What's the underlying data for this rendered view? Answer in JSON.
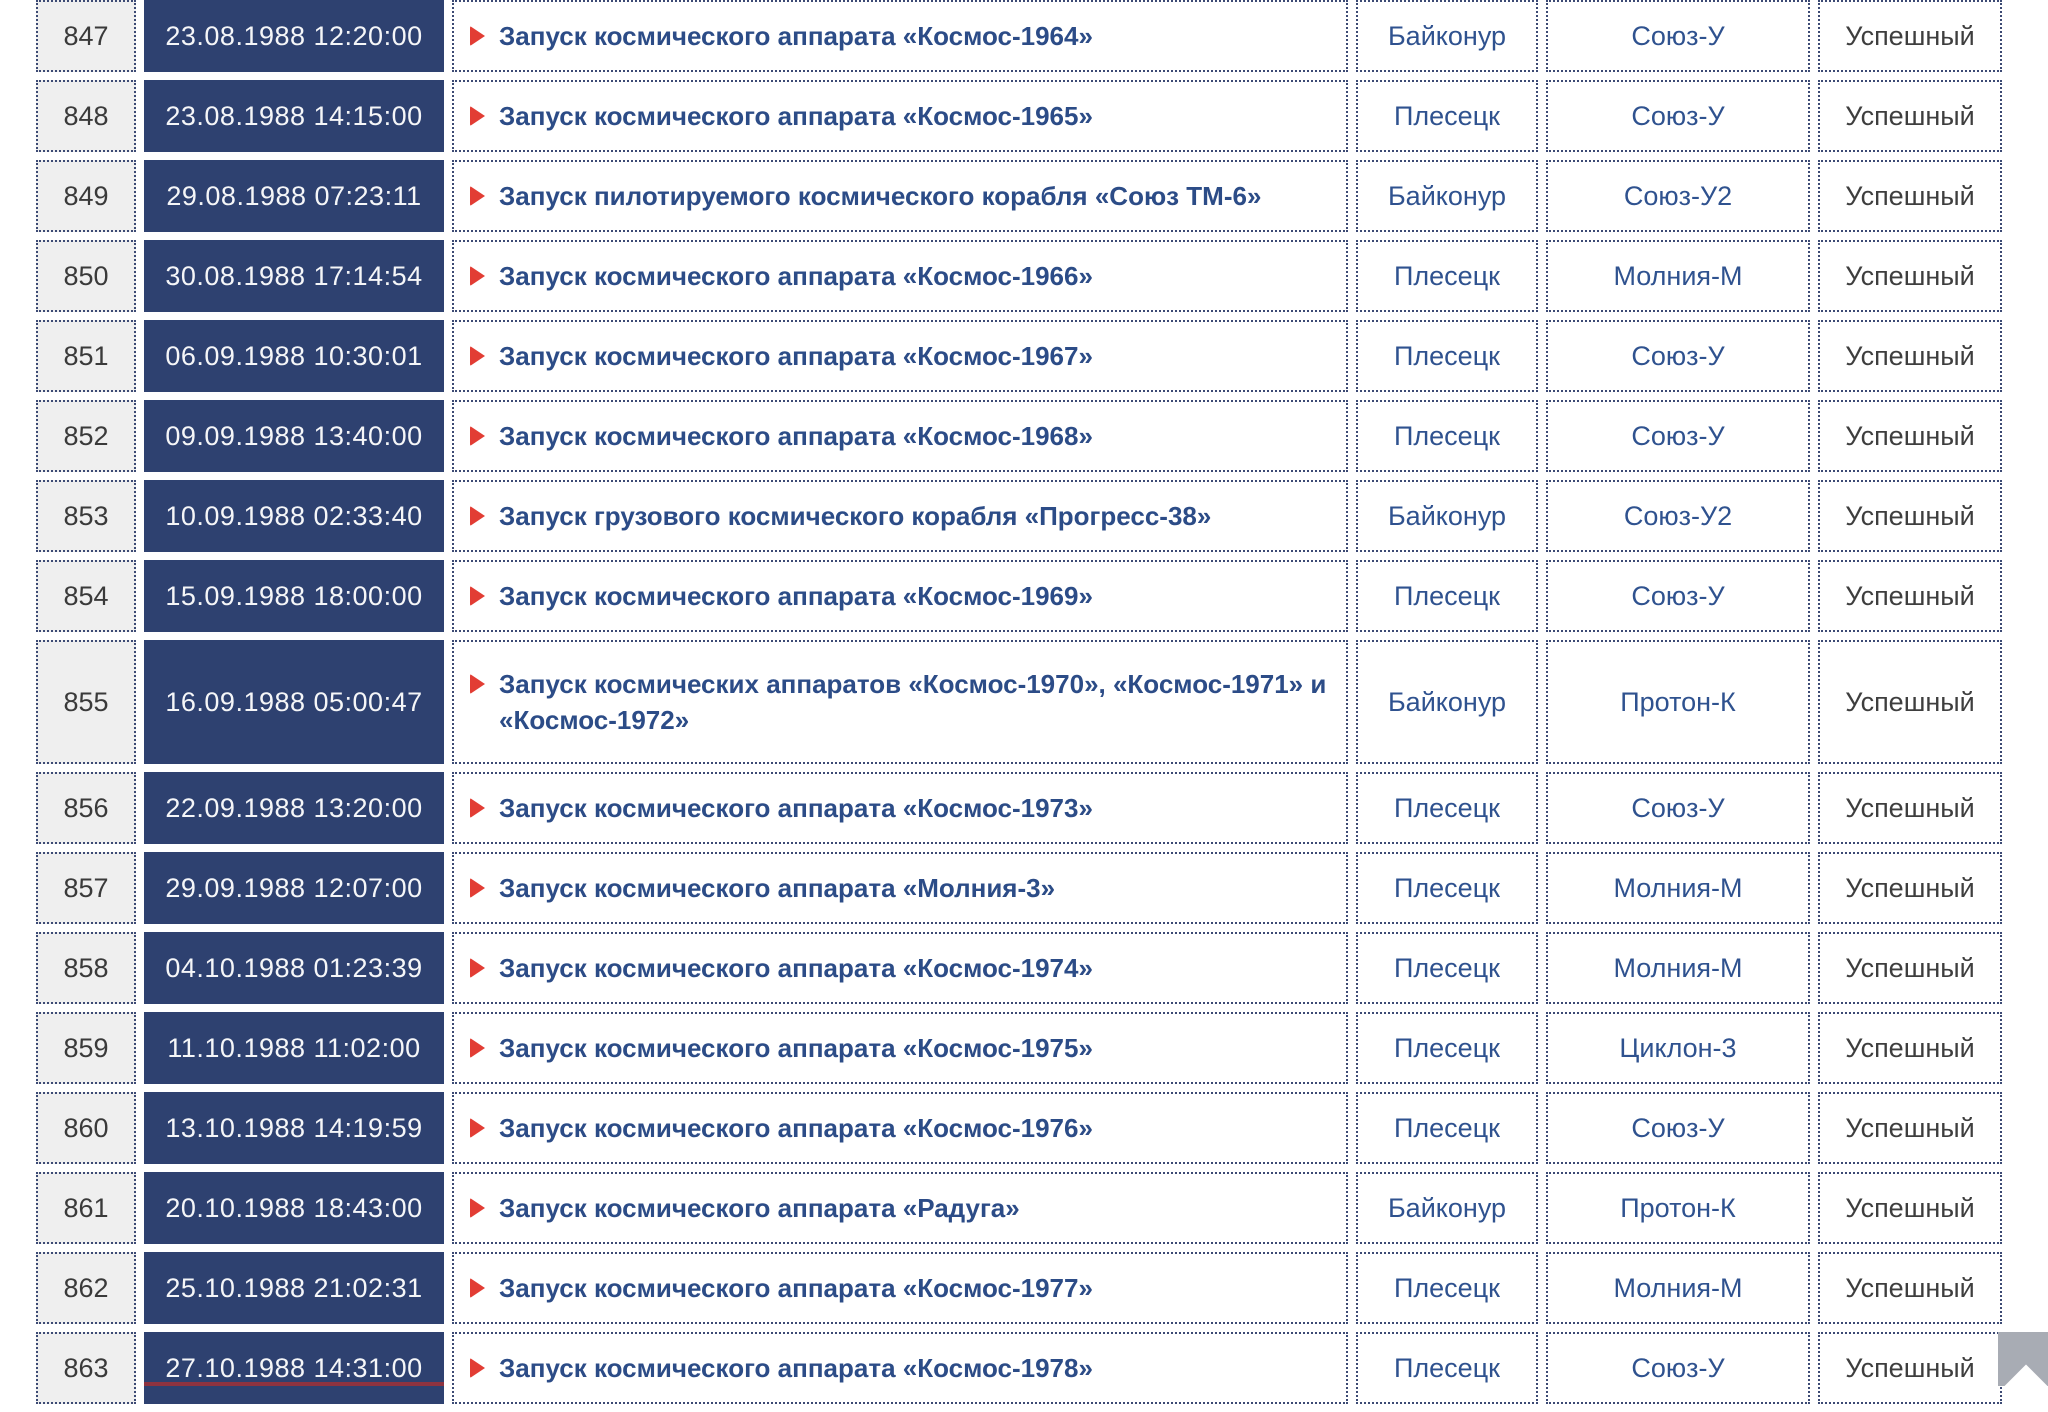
{
  "colors": {
    "navy_cell": "#2e4170",
    "link_blue": "#2c4c87",
    "site_blue": "#2f528f",
    "status_gray": "#3e3e3e",
    "number_gray": "#3a3a3a",
    "bullet_red": "#e23d34",
    "number_bg": "#efefef",
    "border_dots": "#3c4a74",
    "date_text": "#f5f6f8",
    "scroll_btn": "#a8acb4",
    "next_row_peek": "#8e3340",
    "page_bg": "#ffffff"
  },
  "table": {
    "rows": [
      {
        "num": "847",
        "datetime": "23.08.1988 12:20:00",
        "description": "Запуск космического аппарата «Космос-1964»",
        "site": "Байконур",
        "rocket": "Союз-У",
        "status": "Успешный"
      },
      {
        "num": "848",
        "datetime": "23.08.1988 14:15:00",
        "description": "Запуск космического аппарата «Космос-1965»",
        "site": "Плесецк",
        "rocket": "Союз-У",
        "status": "Успешный"
      },
      {
        "num": "849",
        "datetime": "29.08.1988 07:23:11",
        "description": "Запуск пилотируемого космического корабля «Союз ТМ-6»",
        "site": "Байконур",
        "rocket": "Союз-У2",
        "status": "Успешный"
      },
      {
        "num": "850",
        "datetime": "30.08.1988 17:14:54",
        "description": "Запуск космического аппарата «Космос-1966»",
        "site": "Плесецк",
        "rocket": "Молния-М",
        "status": "Успешный"
      },
      {
        "num": "851",
        "datetime": "06.09.1988 10:30:01",
        "description": "Запуск космического аппарата «Космос-1967»",
        "site": "Плесецк",
        "rocket": "Союз-У",
        "status": "Успешный"
      },
      {
        "num": "852",
        "datetime": "09.09.1988 13:40:00",
        "description": "Запуск космического аппарата «Космос-1968»",
        "site": "Плесецк",
        "rocket": "Союз-У",
        "status": "Успешный"
      },
      {
        "num": "853",
        "datetime": "10.09.1988 02:33:40",
        "description": "Запуск грузового космического корабля «Прогресс-38»",
        "site": "Байконур",
        "rocket": "Союз-У2",
        "status": "Успешный"
      },
      {
        "num": "854",
        "datetime": "15.09.1988 18:00:00",
        "description": "Запуск космического аппарата «Космос-1969»",
        "site": "Плесецк",
        "rocket": "Союз-У",
        "status": "Успешный"
      },
      {
        "num": "855",
        "datetime": "16.09.1988 05:00:47",
        "description": "Запуск космических аппаратов «Космос-1970», «Космос-1971» и «Космос-1972»",
        "site": "Байконур",
        "rocket": "Протон-К",
        "status": "Успешный"
      },
      {
        "num": "856",
        "datetime": "22.09.1988 13:20:00",
        "description": "Запуск космического аппарата «Космос-1973»",
        "site": "Плесецк",
        "rocket": "Союз-У",
        "status": "Успешный"
      },
      {
        "num": "857",
        "datetime": "29.09.1988 12:07:00",
        "description": "Запуск космического аппарата «Молния-3»",
        "site": "Плесецк",
        "rocket": "Молния-М",
        "status": "Успешный"
      },
      {
        "num": "858",
        "datetime": "04.10.1988 01:23:39",
        "description": "Запуск космического аппарата «Космос-1974»",
        "site": "Плесецк",
        "rocket": "Молния-М",
        "status": "Успешный"
      },
      {
        "num": "859",
        "datetime": "11.10.1988 11:02:00",
        "description": "Запуск космического аппарата «Космос-1975»",
        "site": "Плесецк",
        "rocket": "Циклон-3",
        "status": "Успешный"
      },
      {
        "num": "860",
        "datetime": "13.10.1988 14:19:59",
        "description": "Запуск космического аппарата «Космос-1976»",
        "site": "Плесецк",
        "rocket": "Союз-У",
        "status": "Успешный"
      },
      {
        "num": "861",
        "datetime": "20.10.1988 18:43:00",
        "description": "Запуск космического аппарата «Радуга»",
        "site": "Байконур",
        "rocket": "Протон-К",
        "status": "Успешный"
      },
      {
        "num": "862",
        "datetime": "25.10.1988 21:02:31",
        "description": "Запуск космического аппарата «Космос-1977»",
        "site": "Плесецк",
        "rocket": "Молния-М",
        "status": "Успешный"
      },
      {
        "num": "863",
        "datetime": "27.10.1988 14:31:00",
        "description": "Запуск космического аппарата «Космос-1978»",
        "site": "Плесецк",
        "rocket": "Союз-У",
        "status": "Успешный"
      }
    ]
  },
  "scroll_top_button": {
    "icon": "chevron-up-icon"
  }
}
